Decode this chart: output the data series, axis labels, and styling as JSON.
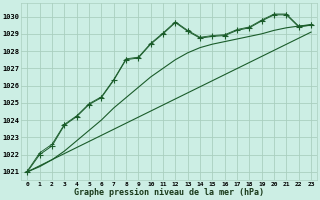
{
  "title": "Graphe pression niveau de la mer (hPa)",
  "bg_color": "#cceee4",
  "grid_color": "#aacfbf",
  "line_color": "#1a5c2a",
  "xlim": [
    -0.5,
    23.5
  ],
  "ylim": [
    1020.5,
    1030.8
  ],
  "yticks": [
    1021,
    1022,
    1023,
    1024,
    1025,
    1026,
    1027,
    1028,
    1029,
    1030
  ],
  "xtick_labels": [
    "0",
    "1",
    "2",
    "3",
    "4",
    "5",
    "6",
    "7",
    "8",
    "9",
    "10",
    "11",
    "12",
    "13",
    "14",
    "15",
    "16",
    "17",
    "18",
    "19",
    "20",
    "21",
    "22",
    "23"
  ],
  "series1": [
    [
      0,
      1021.0
    ],
    [
      1,
      1022.0
    ],
    [
      2,
      1022.5
    ],
    [
      3,
      1023.7
    ],
    [
      4,
      1024.2
    ],
    [
      5,
      1024.9
    ],
    [
      6,
      1025.3
    ],
    [
      7,
      1026.3
    ],
    [
      8,
      1027.5
    ],
    [
      9,
      1027.6
    ],
    [
      10,
      1028.4
    ],
    [
      11,
      1029.0
    ],
    [
      12,
      1029.65
    ],
    [
      13,
      1029.15
    ],
    [
      14,
      1028.75
    ],
    [
      15,
      1028.85
    ],
    [
      16,
      1028.9
    ],
    [
      17,
      1029.2
    ],
    [
      18,
      1029.35
    ],
    [
      19,
      1029.75
    ],
    [
      20,
      1030.1
    ],
    [
      21,
      1030.1
    ],
    [
      22,
      1029.4
    ],
    [
      23,
      1029.5
    ]
  ],
  "series2": [
    [
      0,
      1021.05
    ],
    [
      1,
      1022.1
    ],
    [
      2,
      1022.6
    ],
    [
      3,
      1023.75
    ],
    [
      4,
      1024.25
    ],
    [
      5,
      1024.95
    ],
    [
      6,
      1025.35
    ],
    [
      7,
      1026.35
    ],
    [
      8,
      1027.55
    ],
    [
      9,
      1027.65
    ],
    [
      10,
      1028.45
    ],
    [
      11,
      1029.05
    ],
    [
      12,
      1029.7
    ],
    [
      13,
      1029.2
    ],
    [
      14,
      1028.8
    ],
    [
      15,
      1028.9
    ],
    [
      16,
      1028.95
    ],
    [
      17,
      1029.25
    ],
    [
      18,
      1029.4
    ],
    [
      19,
      1029.8
    ],
    [
      20,
      1030.15
    ],
    [
      21,
      1030.15
    ],
    [
      22,
      1029.45
    ],
    [
      23,
      1029.55
    ]
  ],
  "series3": [
    [
      0,
      1021.0
    ],
    [
      1,
      1021.3
    ],
    [
      2,
      1021.7
    ],
    [
      3,
      1022.2
    ],
    [
      4,
      1022.8
    ],
    [
      5,
      1023.4
    ],
    [
      6,
      1024.0
    ],
    [
      7,
      1024.7
    ],
    [
      8,
      1025.3
    ],
    [
      9,
      1025.9
    ],
    [
      10,
      1026.5
    ],
    [
      11,
      1027.0
    ],
    [
      12,
      1027.5
    ],
    [
      13,
      1027.9
    ],
    [
      14,
      1028.2
    ],
    [
      15,
      1028.4
    ],
    [
      16,
      1028.55
    ],
    [
      17,
      1028.7
    ],
    [
      18,
      1028.85
    ],
    [
      19,
      1029.0
    ],
    [
      20,
      1029.2
    ],
    [
      21,
      1029.35
    ],
    [
      22,
      1029.45
    ],
    [
      23,
      1029.5
    ]
  ],
  "series4": [
    [
      0,
      1021.0
    ],
    [
      23,
      1029.1
    ]
  ]
}
